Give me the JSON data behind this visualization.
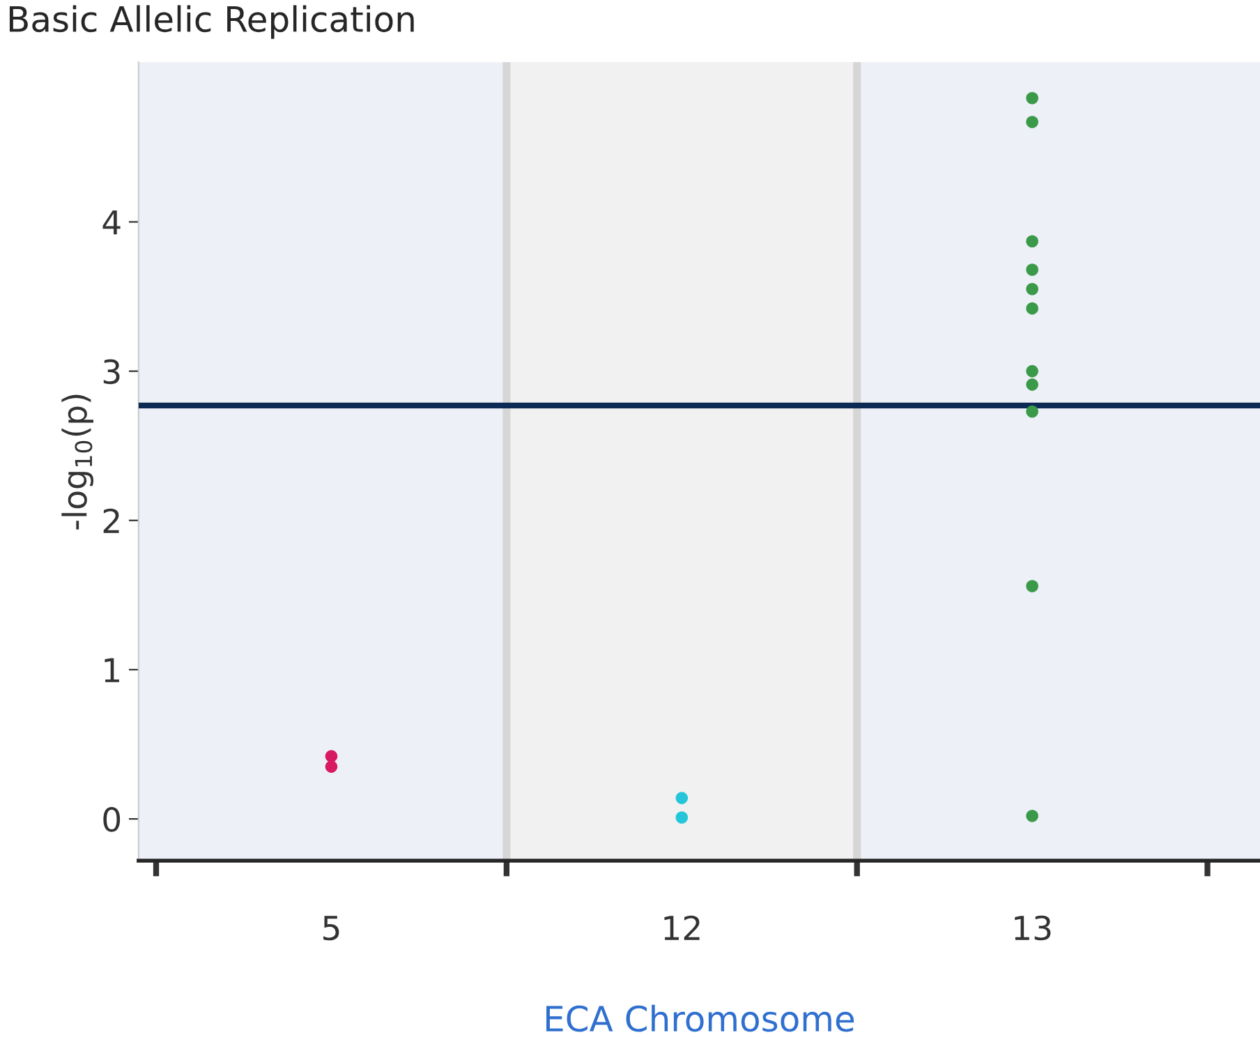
{
  "chart_data": {
    "type": "scatter",
    "title": "Basic Allelic Replication",
    "xlabel": "ECA Chromosome",
    "ylabel": "-log$_{10}$(p)",
    "categories": [
      "5",
      "12",
      "13"
    ],
    "ylim": [
      -0.28,
      5.07
    ],
    "yticks": [
      0,
      1,
      2,
      3,
      4
    ],
    "series": [
      {
        "color": "#d81b60",
        "x": [
          "5",
          "5"
        ],
        "values": [
          0.42,
          0.35
        ]
      },
      {
        "color": "#26c6da",
        "x": [
          "12",
          "12"
        ],
        "values": [
          0.14,
          0.01
        ]
      },
      {
        "color": "#3a9a4a",
        "x": [
          "13",
          "13",
          "13",
          "13",
          "13",
          "13",
          "13",
          "13",
          "13",
          "13",
          "13"
        ],
        "values": [
          4.83,
          4.67,
          3.87,
          3.68,
          3.55,
          3.42,
          3.0,
          2.91,
          2.73,
          1.56,
          0.02
        ]
      }
    ],
    "ref_lines": [
      {
        "axis": "y",
        "value": 2.77,
        "color": "#0d2a55",
        "line_style": "solid"
      }
    ],
    "bands": [
      {
        "axis": "x",
        "from": "12",
        "to": "12",
        "color": "#f1f1f1"
      }
    ],
    "marker": "circle",
    "grid": false,
    "legend": false
  }
}
